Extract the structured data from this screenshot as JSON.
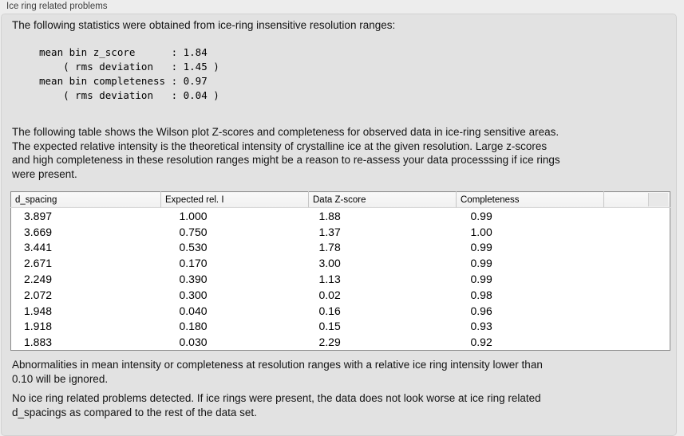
{
  "panel": {
    "title": "Ice ring related problems"
  },
  "intro": "The following statistics were obtained from ice-ring insensitive resolution ranges:",
  "stats_block": {
    "lines": [
      "mean bin z_score      : 1.84",
      "    ( rms deviation   : 1.45 )",
      "mean bin completeness : 0.97",
      "    ( rms deviation   : 0.04 )"
    ]
  },
  "description": {
    "lines": [
      "The following table shows the Wilson plot Z-scores and completeness for observed data in ice-ring sensitive areas.",
      "The expected relative intensity is the theoretical intensity of crystalline ice at the given resolution. Large z-scores",
      "and high completeness in these resolution ranges might be a reason to re-assess your data processsing if ice rings",
      "were present."
    ]
  },
  "table": {
    "columns": [
      "d_spacing",
      "Expected rel. I",
      "Data Z-score",
      "Completeness"
    ],
    "rows": [
      [
        "3.897",
        "1.000",
        "1.88",
        "0.99"
      ],
      [
        "3.669",
        "0.750",
        "1.37",
        "1.00"
      ],
      [
        "3.441",
        "0.530",
        "1.78",
        "0.99"
      ],
      [
        "2.671",
        "0.170",
        "3.00",
        "0.99"
      ],
      [
        "2.249",
        "0.390",
        "1.13",
        "0.99"
      ],
      [
        "2.072",
        "0.300",
        "0.02",
        "0.98"
      ],
      [
        "1.948",
        "0.040",
        "0.16",
        "0.96"
      ],
      [
        "1.918",
        "0.180",
        "0.15",
        "0.93"
      ],
      [
        "1.883",
        "0.030",
        "2.29",
        "0.92"
      ]
    ]
  },
  "notes": [
    {
      "lines": [
        "Abnormalities in mean intensity or completeness at resolution ranges with a relative ice ring intensity lower than",
        "0.10 will be ignored."
      ]
    },
    {
      "lines": [
        "No ice ring related problems detected. If ice rings were present, the data does not look worse at ice ring related",
        "d_spacings as compared to the rest of the data set."
      ]
    }
  ],
  "colors": {
    "page_bg": "#ededed",
    "panel_bg": "#e2e2e2",
    "panel_border": "#d2d2d2",
    "table_bg": "#ffffff",
    "table_border": "#8a8a8a",
    "table_header_bg": "#f5f5f5",
    "text": "#141414"
  }
}
